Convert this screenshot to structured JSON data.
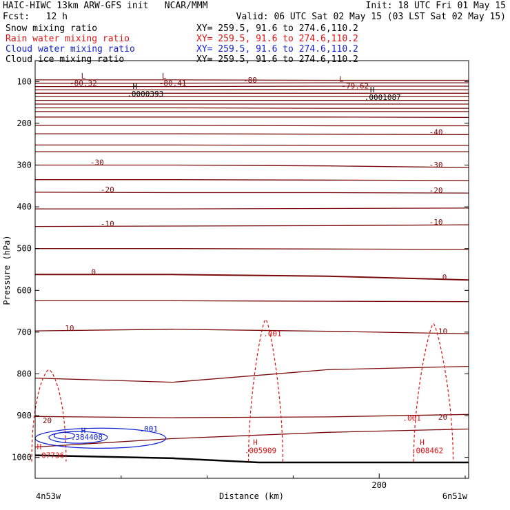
{
  "header": {
    "title_left": "HAIC-HIWC 13km ARW-GFS init   NCAR/MMM",
    "init": "Init: 18 UTC Fri 01 May 15",
    "fcst": "Fcst:   12 h",
    "valid": "Valid: 06 UTC Sat 02 May 15 (03 LST Sat 02 May 15)",
    "fields": [
      {
        "name": "Snow mixing ratio",
        "xy": "XY= 259.5, 91.6 to 274.6,110.2",
        "color": "#000000"
      },
      {
        "name": "Rain water mixing ratio",
        "xy": "XY= 259.5, 91.6 to 274.6,110.2",
        "color": "#e01010"
      },
      {
        "name": "Cloud water mixing ratio",
        "xy": "XY= 259.5, 91.6 to 274.6,110.2",
        "color": "#1020d0"
      },
      {
        "name": "Cloud ice mixing ratio",
        "xy": "XY= 259.5, 91.6 to 274.6,110.2",
        "color": "#000000"
      }
    ]
  },
  "chart_data": {
    "type": "contour cross-section",
    "xlabel": "Distance (km)",
    "ylabel": "Pressure (hPa)",
    "x_ticks": [
      200
    ],
    "y_ticks": [
      100,
      200,
      300,
      400,
      500,
      600,
      700,
      800,
      900,
      1000
    ],
    "xlim": [
      0,
      252
    ],
    "ylim": [
      1050,
      50
    ],
    "left_endpoint": "4n53w",
    "right_endpoint": "6n51w",
    "temperature_contours": {
      "color": "#7a0a0a",
      "levels": [
        -80,
        -70,
        -60,
        -50,
        -40,
        -30,
        -20,
        -10,
        0,
        10,
        20
      ],
      "labels": [
        {
          "text": "-80.32",
          "x": 28,
          "p": 110
        },
        {
          "text": "-80.41",
          "x": 80,
          "p": 110
        },
        {
          "text": "-80",
          "x": 125,
          "p": 103
        },
        {
          "text": "-79.62",
          "x": 186,
          "p": 117
        },
        {
          "text": "-40",
          "x": 233,
          "p": 227
        },
        {
          "text": "-30",
          "x": 36,
          "p": 300
        },
        {
          "text": "-30",
          "x": 233,
          "p": 306
        },
        {
          "text": "-20",
          "x": 42,
          "p": 365
        },
        {
          "text": "-20",
          "x": 233,
          "p": 367
        },
        {
          "text": "-10",
          "x": 42,
          "p": 447
        },
        {
          "text": "-10",
          "x": 233,
          "p": 443
        },
        {
          "text": "0",
          "x": 34,
          "p": 562
        },
        {
          "text": "0",
          "x": 238,
          "p": 575
        },
        {
          "text": "10",
          "x": 20,
          "p": 697
        },
        {
          "text": "10",
          "x": 237,
          "p": 704
        },
        {
          "text": "20",
          "x": 7,
          "p": 918
        },
        {
          "text": "20",
          "x": 237,
          "p": 910
        }
      ],
      "extremes": [
        {
          "type": "L",
          "value": "-80.32",
          "x": 28,
          "p": 93
        },
        {
          "type": "L",
          "value": "-80.41",
          "x": 75,
          "p": 93
        },
        {
          "type": "L",
          "value": "-79.62",
          "x": 178,
          "p": 100
        }
      ]
    },
    "snow_extremes": [
      {
        "type": "H",
        "value": ".0000393",
        "x": 58,
        "p": 118
      },
      {
        "type": "H",
        "value": ".0001087",
        "x": 196,
        "p": 126
      }
    ],
    "rain_water": {
      "color": "#e01010",
      "style": "dashed",
      "contour_labels": [
        {
          "text": ".001",
          "x": 138,
          "p": 710
        },
        {
          "text": ".001",
          "x": 219,
          "p": 912
        }
      ],
      "maxima": [
        {
          "value": ".07736",
          "x": 1,
          "p": 1001
        },
        {
          "value": ".005909",
          "x": 128,
          "p": 990
        },
        {
          "value": ".008462",
          "x": 225,
          "p": 990
        }
      ]
    },
    "cloud_water": {
      "color": "#1020d0",
      "contour_labels": [
        {
          "text": ".001",
          "x": 66,
          "p": 938
        }
      ],
      "maxima": [
        {
          "value": ".384408",
          "x": 30,
          "p": 958
        }
      ]
    }
  }
}
